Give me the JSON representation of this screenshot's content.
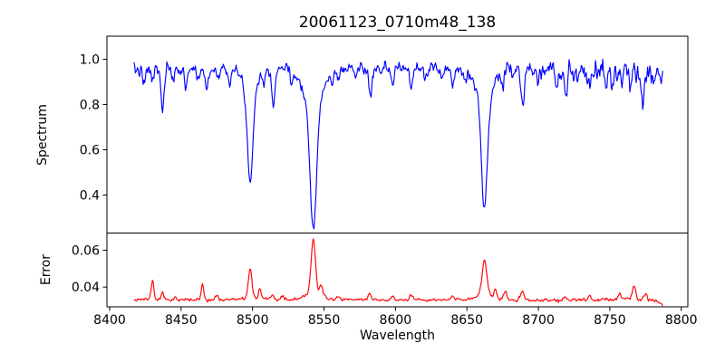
{
  "chart_data": {
    "type": "line",
    "title": "20061123_0710m48_138",
    "xlabel": "Wavelength",
    "background": "#ffffff",
    "axis_color": "#000000",
    "x_start": 8417,
    "x_end": 8787,
    "x_step": 0.5,
    "xlim": [
      8398.1,
      8804.6
    ],
    "xticks": [
      8400,
      8450,
      8500,
      8550,
      8600,
      8650,
      8700,
      8750,
      8800
    ],
    "xticklabels": [
      "8400",
      "8450",
      "8500",
      "8550",
      "8600",
      "8650",
      "8700",
      "8750",
      "8800"
    ],
    "legend": "none",
    "grid": false,
    "panels": [
      {
        "name": "spectrum",
        "ylabel": "Spectrum",
        "color": "#0000ff",
        "ylim": [
          0.232,
          1.102
        ],
        "yticks": [
          0.4,
          0.6,
          0.8,
          1.0
        ],
        "yticklabels": [
          "0.4",
          "0.6",
          "0.8",
          "1.0"
        ],
        "clip_max": 1.045,
        "seed": 7,
        "continuum": [
          [
            8417,
            0.952
          ],
          [
            8440,
            0.957
          ],
          [
            8470,
            0.957
          ],
          [
            8500,
            0.963
          ],
          [
            8530,
            0.965
          ],
          [
            8560,
            0.962
          ],
          [
            8600,
            0.96
          ],
          [
            8640,
            0.959
          ],
          [
            8670,
            0.963
          ],
          [
            8690,
            0.962
          ],
          [
            8705,
            0.952
          ],
          [
            8725,
            0.945
          ],
          [
            8750,
            0.945
          ],
          [
            8770,
            0.942
          ],
          [
            8787,
            0.948
          ]
        ],
        "noise_sigma": [
          [
            8417,
            0.017
          ],
          [
            8460,
            0.014
          ],
          [
            8520,
            0.013
          ],
          [
            8580,
            0.013
          ],
          [
            8640,
            0.014
          ],
          [
            8690,
            0.018
          ],
          [
            8720,
            0.026
          ],
          [
            8760,
            0.028
          ],
          [
            8787,
            0.026
          ]
        ],
        "absorption_lines": [
          [
            8424,
            0.07,
            1.0
          ],
          [
            8430,
            0.05,
            0.8
          ],
          [
            8437,
            0.18,
            1.1
          ],
          [
            8444,
            0.06,
            0.9
          ],
          [
            8453,
            0.08,
            1.0
          ],
          [
            8462,
            0.05,
            0.9
          ],
          [
            8468,
            0.09,
            1.1
          ],
          [
            8476,
            0.04,
            0.9
          ],
          [
            8484,
            0.05,
            0.9
          ],
          [
            8498.3,
            0.4,
            1.8
          ],
          [
            8498.3,
            0.11,
            5.0
          ],
          [
            8508,
            0.05,
            0.9
          ],
          [
            8514.6,
            0.15,
            1.2
          ],
          [
            8527,
            0.06,
            0.9
          ],
          [
            8542.5,
            0.54,
            2.3
          ],
          [
            8542.5,
            0.16,
            7.0
          ],
          [
            8556,
            0.04,
            0.9
          ],
          [
            8560,
            0.05,
            0.9
          ],
          [
            8572,
            0.04,
            0.9
          ],
          [
            8582.5,
            0.12,
            1.2
          ],
          [
            8590,
            0.04,
            0.9
          ],
          [
            8598,
            0.07,
            1.0
          ],
          [
            8611,
            0.08,
            1.0
          ],
          [
            8621,
            0.05,
            0.9
          ],
          [
            8632,
            0.04,
            0.9
          ],
          [
            8640,
            0.07,
            1.1
          ],
          [
            8649,
            0.04,
            0.9
          ],
          [
            8662.3,
            0.5,
            2.0
          ],
          [
            8662.3,
            0.13,
            6.0
          ],
          [
            8675,
            0.08,
            1.0
          ],
          [
            8682,
            0.04,
            0.9
          ],
          [
            8689,
            0.17,
            1.2
          ],
          [
            8699,
            0.05,
            0.9
          ],
          [
            8713,
            0.06,
            1.0
          ],
          [
            8719,
            0.09,
            1.1
          ],
          [
            8727,
            0.05,
            0.9
          ],
          [
            8736,
            0.07,
            1.0
          ],
          [
            8747,
            0.05,
            0.9
          ],
          [
            8752,
            0.05,
            0.9
          ],
          [
            8758,
            0.07,
            1.0
          ],
          [
            8764,
            0.06,
            0.9
          ],
          [
            8773,
            0.08,
            1.0
          ],
          [
            8780,
            0.05,
            0.9
          ]
        ]
      },
      {
        "name": "error",
        "ylabel": "Error",
        "color": "#ff0000",
        "ylim": [
          0.0293,
          0.0693
        ],
        "yticks": [
          0.04,
          0.06
        ],
        "yticklabels": [
          "0.04",
          "0.06"
        ],
        "clip_max": 0.068,
        "seed": 11,
        "baseline": [
          [
            8417,
            0.0335
          ],
          [
            8445,
            0.033
          ],
          [
            8475,
            0.0332
          ],
          [
            8500,
            0.0334
          ],
          [
            8530,
            0.0331
          ],
          [
            8565,
            0.0334
          ],
          [
            8590,
            0.033
          ],
          [
            8620,
            0.0329
          ],
          [
            8650,
            0.0332
          ],
          [
            8680,
            0.0331
          ],
          [
            8700,
            0.0328
          ],
          [
            8730,
            0.0329
          ],
          [
            8750,
            0.033
          ],
          [
            8762,
            0.0336
          ],
          [
            8772,
            0.033
          ],
          [
            8780,
            0.0328
          ],
          [
            8787,
            0.031
          ]
        ],
        "noise_sigma": [
          [
            8417,
            0.0005
          ],
          [
            8600,
            0.0004
          ],
          [
            8700,
            0.0005
          ],
          [
            8787,
            0.0006
          ]
        ],
        "emission_peaks": [
          [
            8430,
            0.0105,
            0.9
          ],
          [
            8437,
            0.004,
            0.9
          ],
          [
            8446,
            0.002,
            0.8
          ],
          [
            8465,
            0.008,
            0.9
          ],
          [
            8475,
            0.002,
            0.8
          ],
          [
            8498.3,
            0.0165,
            1.3
          ],
          [
            8505,
            0.0055,
            0.9
          ],
          [
            8514,
            0.003,
            0.9
          ],
          [
            8521,
            0.002,
            0.9
          ],
          [
            8542.5,
            0.029,
            1.5
          ],
          [
            8542.5,
            0.004,
            5.0
          ],
          [
            8548,
            0.006,
            1.0
          ],
          [
            8560,
            0.0015,
            0.9
          ],
          [
            8582,
            0.0035,
            1.0
          ],
          [
            8598,
            0.002,
            0.9
          ],
          [
            8611,
            0.003,
            1.0
          ],
          [
            8640,
            0.002,
            0.9
          ],
          [
            8662.3,
            0.018,
            1.6
          ],
          [
            8662.3,
            0.0035,
            5.0
          ],
          [
            8670,
            0.004,
            1.0
          ],
          [
            8677,
            0.004,
            1.0
          ],
          [
            8689,
            0.0045,
            1.0
          ],
          [
            8719,
            0.002,
            1.0
          ],
          [
            8736,
            0.0025,
            1.0
          ],
          [
            8757,
            0.003,
            1.0
          ],
          [
            8767,
            0.0075,
            1.0
          ],
          [
            8775,
            0.004,
            1.1
          ]
        ]
      }
    ]
  }
}
